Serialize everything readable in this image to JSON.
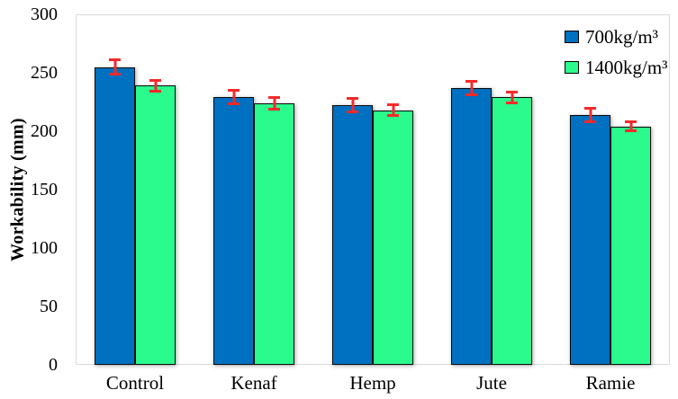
{
  "chart_data": {
    "type": "bar",
    "title": "",
    "xlabel": "",
    "ylabel": "Workability (mm)",
    "categories": [
      "Control",
      "Kenaf",
      "Hemp",
      "Jute",
      "Ramie"
    ],
    "series": [
      {
        "name": "700kg/m³",
        "color": "#0070C0",
        "values": [
          255,
          229,
          222,
          237,
          214
        ],
        "errors": [
          7,
          7,
          7,
          7,
          7
        ]
      },
      {
        "name": "1400kg/m³",
        "color": "#2BFA8C",
        "values": [
          239,
          224,
          218,
          229,
          204
        ],
        "errors": [
          6,
          6,
          6,
          6,
          5
        ]
      }
    ],
    "ylim": [
      0,
      300
    ],
    "yticks": [
      0,
      50,
      100,
      150,
      200,
      250,
      300
    ],
    "grid": false,
    "legend_position": "top-right",
    "colors": {
      "error_bar": "#F42A2A",
      "bar_border": "#0A0A0A",
      "plot_border": "#D9D9D9",
      "text": "#000000"
    }
  }
}
